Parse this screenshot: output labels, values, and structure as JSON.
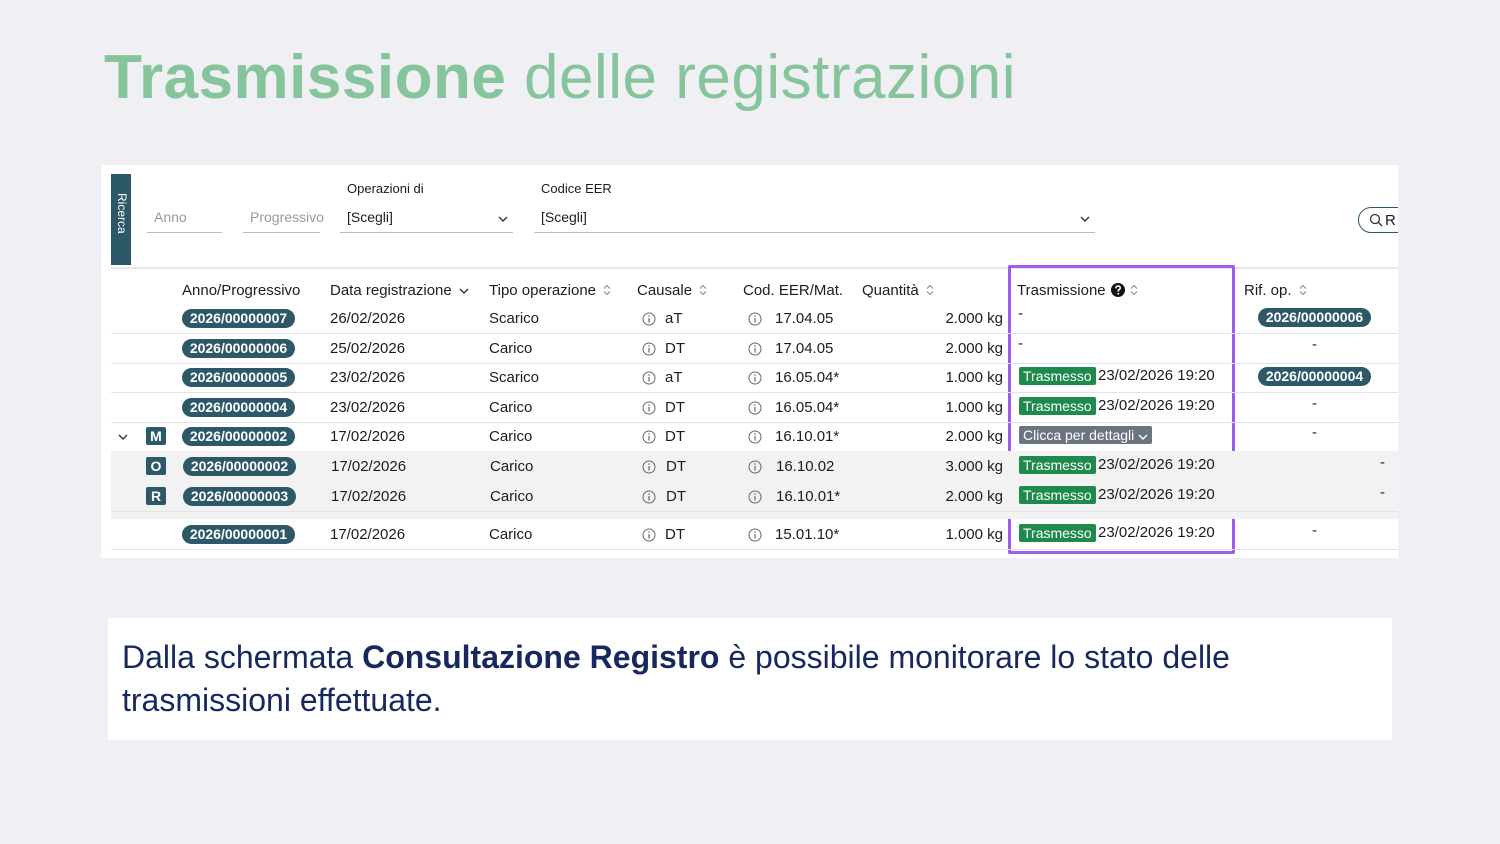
{
  "title": {
    "bold": "Trasmissione",
    "light": "delle registrazioni"
  },
  "search": {
    "tab": "Ricerca",
    "inputs": [
      "Anno",
      "Progressivo"
    ],
    "selects": [
      {
        "label": "Operazioni di",
        "value": "[Scegli]"
      },
      {
        "label": "Codice EER",
        "value": "[Scegli]"
      }
    ],
    "button": "R"
  },
  "table": {
    "headers": [
      "Anno/Progressivo",
      "Data registrazione",
      "Tipo operazione",
      "Causale",
      "Cod. EER/Mat.",
      "Quantità",
      "Trasmissione",
      "Rif. op."
    ],
    "rows": [
      {
        "progressivo": "2026/00000007",
        "data": "26/02/2026",
        "tipo": "Scarico",
        "causale": "aT",
        "cod": "17.04.05",
        "quantita": "2.000 kg",
        "trasmissione": {
          "text": "-"
        },
        "rif": {
          "ref": "2026/00000006"
        }
      },
      {
        "progressivo": "2026/00000006",
        "data": "25/02/2026",
        "tipo": "Carico",
        "causale": "DT",
        "cod": "17.04.05",
        "quantita": "2.000 kg",
        "trasmissione": {
          "text": "-"
        },
        "rif": {
          "text": "-"
        }
      },
      {
        "progressivo": "2026/00000005",
        "data": "23/02/2026",
        "tipo": "Scarico",
        "causale": "aT",
        "cod": "16.05.04*",
        "quantita": "1.000 kg",
        "trasmissione": {
          "status": "Trasmesso",
          "datetime": "23/02/2026 19:20"
        },
        "rif": {
          "ref": "2026/00000004"
        }
      },
      {
        "progressivo": "2026/00000004",
        "data": "23/02/2026",
        "tipo": "Carico",
        "causale": "DT",
        "cod": "16.05.04*",
        "quantita": "1.000 kg",
        "trasmissione": {
          "status": "Trasmesso",
          "datetime": "23/02/2026 19:20"
        },
        "rif": {
          "text": "-"
        }
      },
      {
        "expanded": true,
        "flag": "M",
        "progressivo": "2026/00000002",
        "data": "17/02/2026",
        "tipo": "Carico",
        "causale": "DT",
        "cod": "16.10.01*",
        "quantita": "2.000 kg",
        "trasmissione": {
          "details": "Clicca per dettagli"
        },
        "rif": {
          "text": "-"
        }
      },
      {
        "child": true,
        "flag": "O",
        "progressivo": "2026/00000002",
        "data": "17/02/2026",
        "tipo": "Carico",
        "causale": "DT",
        "cod": "16.10.02",
        "quantita": "3.000 kg",
        "trasmissione": {
          "status": "Trasmesso",
          "datetime": "23/02/2026 19:20"
        },
        "rif": {
          "text": "-"
        }
      },
      {
        "child": true,
        "flag": "R",
        "progressivo": "2026/00000003",
        "data": "17/02/2026",
        "tipo": "Carico",
        "causale": "DT",
        "cod": "16.10.01*",
        "quantita": "2.000 kg",
        "trasmissione": {
          "status": "Trasmesso",
          "datetime": "23/02/2026 19:20"
        },
        "rif": {
          "text": "-"
        }
      },
      {
        "progressivo": "2026/00000001",
        "data": "17/02/2026",
        "tipo": "Carico",
        "causale": "DT",
        "cod": "15.01.10*",
        "quantita": "1.000 kg",
        "trasmissione": {
          "status": "Trasmesso",
          "datetime": "23/02/2026 19:20"
        },
        "rif": {
          "text": "-"
        }
      }
    ]
  },
  "caption": {
    "before": "Dalla schermata",
    "bold": "Consultazione Registro",
    "after": "è possibile monitorare lo stato delle trasmissioni effettuate."
  }
}
